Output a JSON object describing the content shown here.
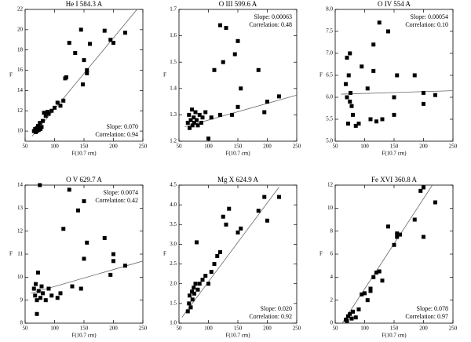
{
  "chart_data": [
    {
      "type": "scatter",
      "title": "He I 584.3 A",
      "x_label": "F(10.7 cm)",
      "y_label": "F",
      "color": "#000000",
      "x": [
        65,
        67,
        68,
        70,
        70,
        72,
        73,
        75,
        76,
        78,
        80,
        82,
        85,
        88,
        90,
        95,
        100,
        105,
        110,
        115,
        118,
        120,
        125,
        135,
        145,
        148,
        150,
        155,
        155,
        160,
        185,
        195,
        200,
        220
      ],
      "y": [
        10.0,
        10.2,
        9.9,
        10.3,
        10.0,
        10.5,
        10.1,
        10.8,
        10.2,
        10.4,
        11.0,
        11.8,
        11.5,
        11.9,
        11.7,
        12.0,
        12.3,
        12.8,
        12.5,
        13.0,
        15.2,
        15.3,
        18.7,
        17.7,
        20.0,
        14.6,
        17.0,
        16.0,
        15.7,
        18.6,
        19.9,
        19.0,
        18.7,
        19.7
      ],
      "xlim": [
        50,
        250
      ],
      "xticks": [
        50,
        100,
        150,
        200,
        250
      ],
      "ylim": [
        9,
        22
      ],
      "yticks": [
        10,
        12,
        14,
        16,
        18,
        20,
        22
      ],
      "fit_line": {
        "x": [
          62,
          240
        ],
        "y": [
          9.5,
          22
        ]
      },
      "annotations": [
        "Slope: 0.070",
        "Correlation: 0.94"
      ],
      "annotation_corner": "lower right"
    },
    {
      "type": "scatter",
      "title": "O III 599.6 A",
      "x_label": "F(10.7 cm)",
      "y_label": "F",
      "color": "#000000",
      "x": [
        65,
        67,
        68,
        70,
        72,
        73,
        75,
        76,
        78,
        80,
        82,
        85,
        88,
        90,
        95,
        100,
        105,
        110,
        120,
        125,
        130,
        145,
        150,
        155,
        120,
        140,
        150,
        185,
        195,
        200,
        220
      ],
      "y": [
        1.27,
        1.3,
        1.25,
        1.28,
        1.32,
        1.26,
        1.29,
        1.27,
        1.31,
        1.28,
        1.26,
        1.3,
        1.27,
        1.29,
        1.31,
        1.21,
        1.29,
        1.47,
        1.64,
        1.5,
        1.63,
        1.53,
        1.58,
        1.4,
        1.3,
        1.3,
        1.33,
        1.47,
        1.31,
        1.35,
        1.37
      ],
      "xlim": [
        50,
        250
      ],
      "xticks": [
        50,
        100,
        150,
        200,
        250
      ],
      "ylim": [
        1.2,
        1.7
      ],
      "yticks": [
        1.2,
        1.3,
        1.4,
        1.5,
        1.6,
        1.7
      ],
      "fit_line": {
        "x": [
          60,
          250
        ],
        "y": [
          1.255,
          1.375
        ]
      },
      "annotations": [
        "Slope: 0.00063",
        "Correlation: 0.48"
      ],
      "annotation_corner": "upper right"
    },
    {
      "type": "scatter",
      "title": "O IV 554 A",
      "x_label": "F(10.7 cm)",
      "y_label": "F",
      "color": "#000000",
      "x": [
        68,
        70,
        70,
        72,
        73,
        75,
        75,
        76,
        78,
        80,
        85,
        90,
        95,
        105,
        110,
        115,
        115,
        120,
        125,
        130,
        140,
        150,
        150,
        155,
        185,
        200,
        200,
        220
      ],
      "y": [
        6.3,
        6.0,
        6.9,
        5.4,
        6.5,
        7.0,
        5.9,
        6.1,
        5.8,
        5.6,
        5.35,
        5.4,
        6.7,
        6.2,
        5.5,
        7.2,
        6.6,
        5.45,
        7.7,
        5.5,
        7.5,
        6.0,
        5.6,
        6.5,
        6.5,
        5.85,
        6.1,
        6.05
      ],
      "xlim": [
        50,
        250
      ],
      "xticks": [
        50,
        100,
        150,
        200,
        250
      ],
      "ylim": [
        5,
        8
      ],
      "yticks": [
        {
          "value": 5,
          "label": "5.0"
        },
        5.5,
        {
          "value": 6,
          "label": "6.0"
        },
        6.5,
        {
          "value": 7,
          "label": "7.0"
        },
        7.5,
        {
          "value": 8,
          "label": "8.0"
        }
      ],
      "fit_line": {
        "x": [
          60,
          250
        ],
        "y": [
          6.07,
          6.15
        ]
      },
      "annotations": [
        "Slope: 0.00054",
        "Correlation: 0.10"
      ],
      "annotation_corner": "upper right"
    },
    {
      "type": "scatter",
      "title": "O V 629.7 A",
      "x_label": "F(10.7 cm)",
      "y_label": "F",
      "color": "#000000",
      "x": [
        65,
        67,
        68,
        70,
        70,
        72,
        73,
        75,
        76,
        78,
        80,
        85,
        90,
        95,
        105,
        110,
        115,
        125,
        130,
        140,
        145,
        150,
        150,
        155,
        185,
        195,
        200,
        200,
        220
      ],
      "y": [
        9.5,
        9.2,
        9.7,
        8.4,
        9.0,
        10.2,
        9.4,
        14.0,
        9.1,
        9.6,
        9.3,
        9.0,
        9.5,
        9.2,
        9.1,
        9.3,
        12.1,
        13.8,
        9.6,
        12.9,
        9.5,
        13.3,
        10.8,
        11.5,
        11.7,
        10.1,
        11.0,
        10.7,
        10.5
      ],
      "xlim": [
        50,
        250
      ],
      "xticks": [
        50,
        100,
        150,
        200,
        250
      ],
      "ylim": [
        8,
        14
      ],
      "yticks": [
        8,
        9,
        10,
        11,
        12,
        13,
        14
      ],
      "fit_line": {
        "x": [
          60,
          250
        ],
        "y": [
          9.3,
          10.7
        ]
      },
      "annotations": [
        "Slope: 0.0074",
        "Correlation: 0.42"
      ],
      "annotation_corner": "upper right"
    },
    {
      "type": "scatter",
      "title": "Mg X 624.9 A",
      "x_label": "F(10.7 cm)",
      "y_label": "F",
      "color": "#000000",
      "x": [
        65,
        67,
        68,
        70,
        72,
        73,
        75,
        76,
        78,
        80,
        82,
        85,
        90,
        95,
        100,
        105,
        110,
        115,
        120,
        125,
        130,
        135,
        150,
        155,
        185,
        195,
        200,
        220
      ],
      "y": [
        1.3,
        1.5,
        1.7,
        1.4,
        1.8,
        1.6,
        1.9,
        1.75,
        2.0,
        3.05,
        1.85,
        2.0,
        2.1,
        2.2,
        2.0,
        2.3,
        2.5,
        2.7,
        2.8,
        3.7,
        3.5,
        3.9,
        3.3,
        3.4,
        3.85,
        4.2,
        3.6,
        4.2
      ],
      "xlim": [
        50,
        250
      ],
      "xticks": [
        50,
        100,
        150,
        200,
        250
      ],
      "ylim": [
        1,
        4.5
      ],
      "yticks": [
        {
          "value": 1,
          "label": "1.0"
        },
        1.5,
        {
          "value": 2,
          "label": "2.0"
        },
        2.5,
        {
          "value": 3,
          "label": "3.0"
        },
        3.5,
        {
          "value": 4,
          "label": "4.0"
        },
        4.5
      ],
      "fit_line": {
        "x": [
          55,
          220
        ],
        "y": [
          1.15,
          4.45
        ]
      },
      "annotations": [
        "Slope: 0.020",
        "Correlation: 0.92"
      ],
      "annotation_corner": "lower right"
    },
    {
      "type": "scatter",
      "title": "Fe XVI 360.8 A",
      "x_label": "F(10.7 cm)",
      "y_label": "F",
      "color": "#000000",
      "x": [
        68,
        70,
        72,
        75,
        78,
        80,
        85,
        90,
        95,
        100,
        105,
        110,
        110,
        115,
        120,
        125,
        130,
        140,
        150,
        155,
        155,
        160,
        185,
        195,
        200,
        200,
        220
      ],
      "y": [
        0.3,
        0.2,
        0.6,
        0.8,
        0.4,
        1.0,
        0.5,
        1.2,
        2.5,
        2.6,
        2.0,
        3.0,
        2.8,
        4.0,
        4.4,
        4.5,
        3.7,
        8.4,
        6.8,
        7.8,
        7.5,
        7.7,
        9.0,
        11.5,
        7.5,
        11.8,
        10.5
      ],
      "xlim": [
        50,
        250
      ],
      "xticks": [
        50,
        100,
        150,
        200,
        250
      ],
      "ylim": [
        0,
        12
      ],
      "yticks": [
        0,
        2,
        4,
        6,
        8,
        10,
        12
      ],
      "fit_line": {
        "x": [
          62,
          215
        ],
        "y": [
          0,
          12
        ]
      },
      "annotations": [
        "Slope: 0.078",
        "Correlation: 0.97"
      ],
      "annotation_corner": "lower right"
    }
  ]
}
